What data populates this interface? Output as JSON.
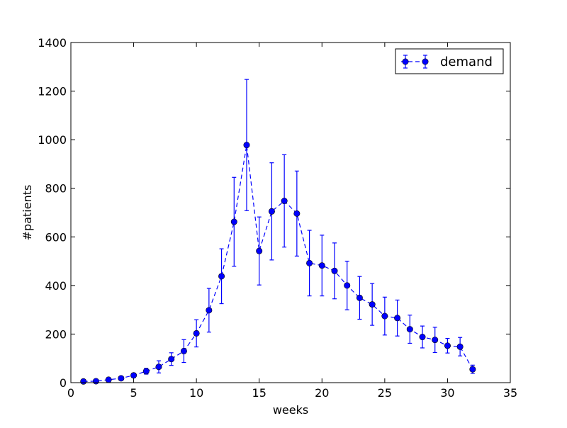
{
  "chart_data": {
    "type": "line",
    "xlabel": "weeks",
    "ylabel": "#patients",
    "xlim": [
      0,
      35
    ],
    "ylim": [
      0,
      1400
    ],
    "xticks": [
      0,
      5,
      10,
      15,
      20,
      25,
      30,
      35
    ],
    "yticks": [
      0,
      200,
      400,
      600,
      800,
      1000,
      1200,
      1400
    ],
    "grid": false,
    "legend_position": "top-right",
    "series": [
      {
        "name": "demand",
        "color": "#0000ff",
        "line_style": "dashed",
        "marker": "circle",
        "x": [
          1,
          2,
          3,
          4,
          5,
          6,
          7,
          8,
          9,
          10,
          11,
          12,
          13,
          14,
          15,
          16,
          17,
          18,
          19,
          20,
          21,
          22,
          23,
          24,
          25,
          26,
          27,
          28,
          29,
          30,
          31,
          32
        ],
        "y": [
          5,
          6,
          12,
          18,
          30,
          47,
          65,
          97,
          130,
          203,
          298,
          438,
          662,
          978,
          542,
          705,
          748,
          696,
          492,
          482,
          460,
          400,
          349,
          322,
          274,
          266,
          220,
          188,
          176,
          152,
          148,
          55
        ],
        "err": [
          4,
          4,
          5,
          7,
          9,
          12,
          25,
          26,
          47,
          56,
          90,
          113,
          183,
          270,
          140,
          200,
          190,
          175,
          135,
          125,
          115,
          100,
          88,
          86,
          78,
          74,
          58,
          45,
          52,
          30,
          38,
          17
        ]
      }
    ]
  }
}
